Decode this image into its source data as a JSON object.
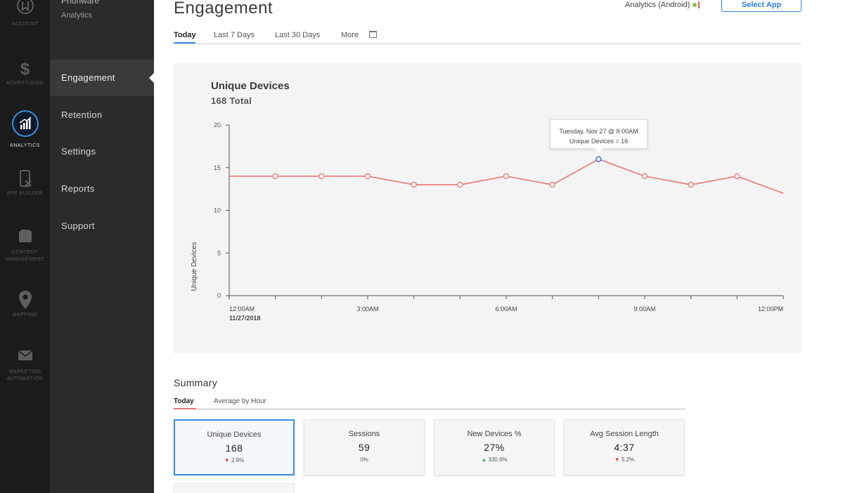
{
  "rail": {
    "items": [
      {
        "label": "ACCOUNT",
        "icon": "account-icon"
      },
      {
        "label": "ADVERTISING",
        "icon": "dollar-icon"
      },
      {
        "label": "ANALYTICS",
        "icon": "analytics-icon"
      },
      {
        "label": "APP BUILDER",
        "icon": "app-builder-icon"
      },
      {
        "label": "CONTENT MANAGEMENT",
        "icon": "content-icon"
      },
      {
        "label": "MAPPING",
        "icon": "map-pin-icon"
      },
      {
        "label": "MARKETING AUTOMATION",
        "icon": "envelope-icon"
      }
    ]
  },
  "subnav": {
    "brand": "Phunware",
    "section": "Analytics",
    "items": [
      "Engagement",
      "Retention",
      "Settings",
      "Reports",
      "Support"
    ],
    "active": "Engagement"
  },
  "header": {
    "title": "Engagement",
    "platform": "Analytics (Android)",
    "select_app": "Select App"
  },
  "tabs": [
    "Today",
    "Last 7 Days",
    "Last 30 Days",
    "More"
  ],
  "chart": {
    "title": "Unique Devices",
    "total": "168 Total",
    "tooltip_line1": "Tuesday, Nov 27 @ 8:00AM",
    "tooltip_line2": "Unique Devices = 16"
  },
  "chart_data": {
    "type": "line",
    "title": "Unique Devices",
    "subtitle": "168 Total",
    "ylabel": "Unique Devices",
    "xlabel": "",
    "ylim": [
      0,
      20
    ],
    "yticks": [
      0,
      5,
      10,
      15,
      20
    ],
    "xtick_labels": [
      "12:00AM",
      "3:00AM",
      "6:00AM",
      "9:00AM",
      "12:00PM"
    ],
    "xtick_sublabel": "11/27/2018",
    "x": [
      0,
      1,
      2,
      3,
      4,
      5,
      6,
      7,
      8,
      9,
      10,
      11,
      12
    ],
    "series": [
      {
        "values": [
          14,
          14,
          14,
          14,
          13,
          13,
          14,
          13,
          16,
          14,
          13,
          14,
          12
        ],
        "color": "#e8837e"
      }
    ],
    "highlight_index": 8,
    "highlight_color": "#3a6fd8",
    "grid": false
  },
  "summary": {
    "title": "Summary",
    "tabs": [
      "Today",
      "Average by Hour"
    ],
    "cards": [
      {
        "label": "Unique Devices",
        "value": "168",
        "delta": "2.9%",
        "direction": "down"
      },
      {
        "label": "Sessions",
        "value": "59",
        "delta": "0%",
        "direction": "none"
      },
      {
        "label": "New Devices %",
        "value": "27%",
        "delta": "330.6%",
        "direction": "up"
      },
      {
        "label": "Avg Session Length",
        "value": "4:37",
        "delta": "5.2%",
        "direction": "down"
      }
    ]
  }
}
